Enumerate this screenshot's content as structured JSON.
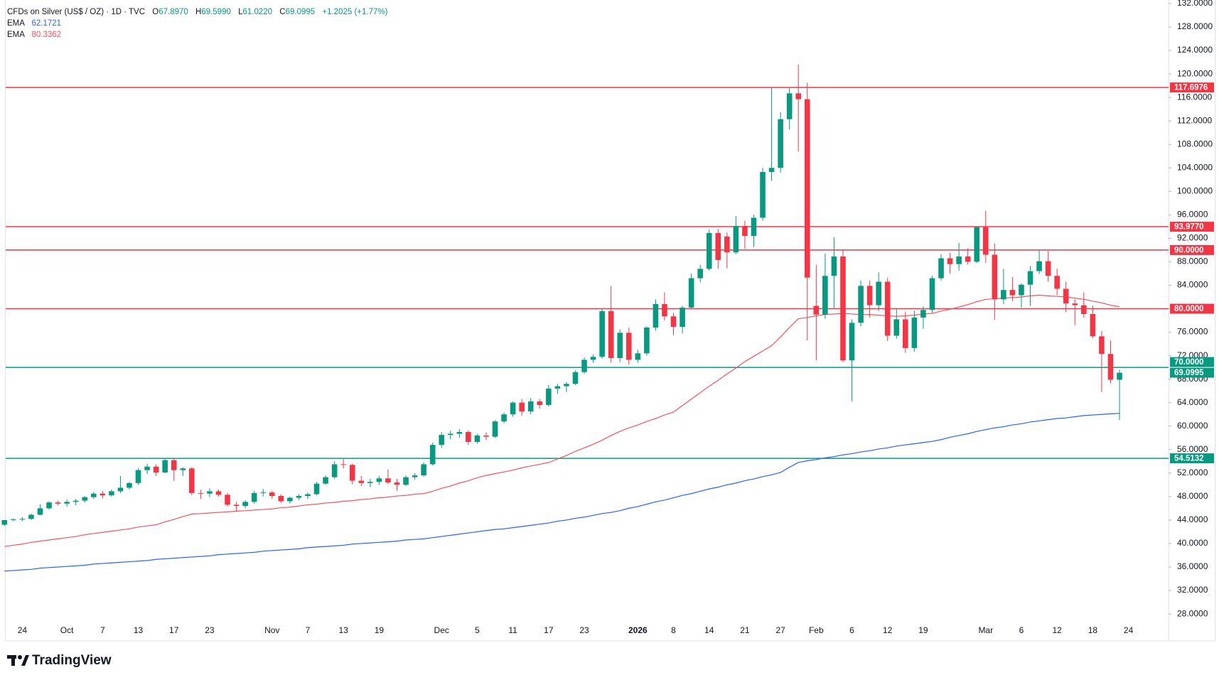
{
  "chart_data": {
    "type": "candlestick",
    "header": {
      "symbol": "CFDs on Silver (US$ / OZ) · 1D · TVC",
      "ohlc": [
        {
          "label": "O",
          "value": "67.8970"
        },
        {
          "label": "H",
          "value": "69.5990"
        },
        {
          "label": "L",
          "value": "61.0220"
        },
        {
          "label": "C",
          "value": "69.0995"
        }
      ],
      "change": "+1.2025 (+1.77%)"
    },
    "branding": "TradingView",
    "up_color": "#089981",
    "down_color": "#f23645",
    "categories": [
      null,
      null,
      "24",
      null,
      null,
      null,
      null,
      "Oct",
      null,
      null,
      null,
      "7",
      null,
      null,
      null,
      "13",
      null,
      null,
      null,
      "17",
      null,
      null,
      null,
      "23",
      null,
      null,
      null,
      null,
      null,
      null,
      "Nov",
      null,
      null,
      null,
      "7",
      null,
      null,
      null,
      "13",
      null,
      null,
      null,
      "19",
      null,
      null,
      null,
      null,
      null,
      null,
      "Dec",
      null,
      null,
      null,
      "5",
      null,
      null,
      null,
      "11",
      null,
      null,
      null,
      "17",
      null,
      null,
      null,
      "23",
      null,
      null,
      null,
      null,
      null,
      "2026",
      null,
      null,
      null,
      "8",
      null,
      null,
      null,
      "14",
      null,
      null,
      null,
      "21",
      null,
      null,
      null,
      "27",
      null,
      null,
      null,
      "Feb",
      null,
      null,
      null,
      "6",
      null,
      null,
      null,
      "12",
      null,
      null,
      null,
      "19",
      null,
      null,
      null,
      null,
      null,
      null,
      "Mar",
      null,
      null,
      null,
      "6",
      null,
      null,
      null,
      "12",
      null,
      null,
      null,
      "18",
      null,
      null,
      null,
      "24"
    ],
    "candles": {
      "open": [
        43.2,
        44,
        44.1,
        44.2,
        44.9,
        46,
        47,
        46.8,
        47.1,
        47.3,
        47.9,
        48.5,
        48.2,
        48.9,
        49.5,
        50.3,
        52.5,
        53.1,
        52.1,
        54.2,
        52.5,
        52.8,
        48.6,
        48.5,
        48.9,
        48.3,
        46.6,
        46.4,
        47.1,
        48.6,
        48.7,
        48.1,
        47.2,
        47.8,
        48.1,
        48.4,
        50.2,
        51.3,
        53.5,
        53.4,
        50.7,
        50.3,
        50.5,
        51.1,
        50.4,
        50,
        51.3,
        51.6,
        53.5,
        56.8,
        58.5,
        58.7,
        59,
        57.3,
        58.4,
        58.2,
        60.8,
        62,
        64,
        62.5,
        64.2,
        63.6,
        66.4,
        66.8,
        67.2,
        69.2,
        71.3,
        71.8,
        79.6,
        71.6,
        75.9,
        71.3,
        72.4,
        76.8,
        80.8,
        78.7,
        76.9,
        80.2,
        85.2,
        86.8,
        92.9,
        92.3,
        89.6,
        94.1,
        92.4,
        95.5,
        103.3,
        104,
        112.3,
        116.7,
        115.7,
        80.5,
        79,
        85.6,
        88.9,
        71.2,
        77.6,
        83.9,
        80.6,
        84.6,
        75.4,
        78.2,
        73.3,
        78.5,
        79.8,
        85.2,
        88.6,
        87.6,
        88.9,
        88,
        93.9,
        89.2,
        81.6,
        83.2,
        82.3,
        84.1,
        86.4,
        88.1,
        85.6,
        83.4,
        80.9,
        80.6,
        79.1,
        75.3,
        72.3,
        67.897,
        null
      ],
      "high": [
        44,
        44.3,
        44.5,
        45.1,
        46.7,
        47.2,
        47.3,
        47.5,
        47.6,
        48.1,
        48.8,
        49,
        49.2,
        51.5,
        50.5,
        52.8,
        53.6,
        53.5,
        54.5,
        54.5,
        53,
        53,
        49.2,
        49.4,
        49.2,
        48.6,
        47.1,
        47.4,
        49,
        49.3,
        49,
        48.4,
        48,
        48.4,
        48.7,
        50.5,
        51.6,
        54,
        54.4,
        53.6,
        51.5,
        51,
        51.5,
        52.6,
        51,
        51.6,
        52,
        53.8,
        57.2,
        59,
        59.2,
        59.5,
        59.3,
        58.7,
        58.9,
        61,
        62.3,
        64.2,
        64.6,
        64.8,
        64.6,
        67,
        67.2,
        67.5,
        69.5,
        71.7,
        72.2,
        80,
        83.9,
        76.5,
        76.8,
        73,
        77,
        81.6,
        82.8,
        79.3,
        80.5,
        86,
        87.5,
        93.5,
        93.6,
        93,
        95.8,
        95,
        96,
        104,
        117.7,
        113.5,
        117.6,
        121.6,
        118.5,
        87.5,
        89.4,
        92.2,
        90,
        78.2,
        84.8,
        84.8,
        86.2,
        85.3,
        80,
        79.5,
        79.7,
        80.4,
        85.6,
        89.3,
        89.5,
        91.2,
        90.3,
        94,
        96.7,
        91.1,
        86.8,
        85.4,
        84.3,
        87.3,
        90,
        89.8,
        86.8,
        84.6,
        81.6,
        82.8,
        80.5,
        76.2,
        74.6,
        69.599,
        null
      ],
      "low": [
        43,
        43.8,
        43.8,
        44,
        44.8,
        45.8,
        46.5,
        46.3,
        46.5,
        47,
        47.6,
        47.7,
        48,
        48.6,
        49.2,
        50,
        51.8,
        51.5,
        52,
        50.7,
        51.5,
        48.2,
        47.6,
        47.9,
        48,
        46.3,
        45.6,
        46,
        46.8,
        48,
        47.6,
        46.9,
        46.8,
        47.4,
        47.6,
        48.2,
        50,
        51,
        52.8,
        50.1,
        49.8,
        49.6,
        50,
        50.1,
        49,
        49.8,
        50.9,
        51.4,
        53.3,
        56.3,
        57.8,
        58,
        56.8,
        57,
        57.6,
        58,
        60.5,
        61.6,
        61.8,
        62,
        63,
        63.3,
        65.5,
        65.8,
        67,
        68.9,
        70.8,
        71.5,
        70.8,
        70.9,
        70.5,
        70.8,
        72,
        76.3,
        78,
        75.5,
        75.8,
        80,
        84.5,
        86.5,
        86.8,
        86.9,
        89.3,
        90.2,
        90.5,
        95,
        101.8,
        103.2,
        110.5,
        106.8,
        74.6,
        71.2,
        78.3,
        80,
        70.9,
        64.2,
        77,
        78.5,
        79.6,
        74.5,
        74.9,
        72.5,
        72.7,
        76.6,
        79.3,
        84.8,
        86,
        86.5,
        87.5,
        87.8,
        87.8,
        78.1,
        80.8,
        81.3,
        80.2,
        80.5,
        85.9,
        84.6,
        82.3,
        79.4,
        77.2,
        78.5,
        75,
        65.8,
        67.3,
        61.022,
        null
      ],
      "close": [
        44,
        44.1,
        44.2,
        44.9,
        46,
        47,
        46.8,
        47.1,
        47.3,
        47.9,
        48.5,
        48.2,
        48.9,
        49.5,
        50.3,
        52.5,
        53.1,
        52.1,
        54.2,
        52.5,
        52.8,
        48.6,
        48.5,
        48.9,
        48.3,
        46.6,
        46.4,
        47.1,
        48.6,
        48.7,
        48.1,
        47.2,
        47.8,
        48.1,
        48.4,
        50.2,
        51.3,
        53.5,
        53.4,
        50.7,
        50.3,
        50.5,
        51.1,
        50.4,
        50,
        51.3,
        51.6,
        53.5,
        56.8,
        58.5,
        58.7,
        59,
        57.3,
        58.4,
        58.2,
        60.8,
        62,
        64,
        62.5,
        64.2,
        63.6,
        66.4,
        66.8,
        67.2,
        69.2,
        71.3,
        71.8,
        79.6,
        71.6,
        75.9,
        71.3,
        72.4,
        76.8,
        80.8,
        78.7,
        76.9,
        80.2,
        85.2,
        86.8,
        92.9,
        88.3,
        89.6,
        94.1,
        92.4,
        95.5,
        103.3,
        104,
        112.3,
        116.7,
        115.7,
        85.3,
        79,
        85.6,
        88.9,
        71.2,
        77.6,
        83.9,
        80.6,
        84.6,
        75.4,
        78.2,
        73.3,
        78.5,
        79.8,
        85.2,
        88.6,
        87.6,
        88.9,
        88,
        93.9,
        89.2,
        81.6,
        83.2,
        82.3,
        84.1,
        86.4,
        88.1,
        85.6,
        83.4,
        80.9,
        80.6,
        79.1,
        75.3,
        72.3,
        67.9,
        69.0995,
        null
      ]
    },
    "series": [
      {
        "name": "EMA",
        "color": "#2962ff",
        "legend_value": "62.1721",
        "values": [
          35.3,
          35.4,
          35.5,
          35.6,
          35.8,
          35.9,
          36.0,
          36.1,
          36.2,
          36.3,
          36.5,
          36.6,
          36.7,
          36.8,
          36.9,
          37.0,
          37.1,
          37.3,
          37.4,
          37.5,
          37.6,
          37.7,
          37.8,
          37.9,
          38.1,
          38.2,
          38.3,
          38.4,
          38.5,
          38.7,
          38.8,
          38.9,
          39.0,
          39.1,
          39.3,
          39.4,
          39.5,
          39.6,
          39.7,
          39.9,
          40.0,
          40.1,
          40.2,
          40.3,
          40.4,
          40.6,
          40.7,
          40.8,
          41.0,
          41.2,
          41.4,
          41.6,
          41.8,
          42.0,
          42.2,
          42.4,
          42.5,
          42.7,
          42.9,
          43.1,
          43.3,
          43.5,
          43.8,
          44.0,
          44.3,
          44.5,
          44.8,
          45.1,
          45.3,
          45.6,
          46.0,
          46.3,
          46.7,
          47.1,
          47.4,
          47.8,
          48.2,
          48.5,
          48.9,
          49.3,
          49.6,
          50.0,
          50.3,
          50.7,
          51.0,
          51.4,
          51.7,
          52.1,
          53.0,
          53.8,
          54.1,
          54.3,
          54.6,
          54.8,
          55.1,
          55.3,
          55.6,
          55.8,
          56.1,
          56.3,
          56.6,
          56.8,
          57.0,
          57.2,
          57.4,
          57.7,
          58.1,
          58.4,
          58.7,
          59.1,
          59.4,
          59.7,
          59.9,
          60.2,
          60.4,
          60.7,
          60.9,
          61.1,
          61.3,
          61.4,
          61.6,
          61.8,
          61.9,
          62.0,
          62.1,
          62.1721,
          null
        ]
      },
      {
        "name": "EMA",
        "color": "#f7525f",
        "legend_value": "80.3362",
        "values": [
          39.5,
          39.7,
          39.9,
          40.2,
          40.4,
          40.6,
          40.8,
          41,
          41.2,
          41.5,
          41.7,
          41.9,
          42.1,
          42.3,
          42.5,
          42.8,
          43,
          43.2,
          43.7,
          44.1,
          44.6,
          45.0,
          45.1,
          45.2,
          45.3,
          45.4,
          45.5,
          45.6,
          45.7,
          45.8,
          45.9,
          46.1,
          46.2,
          46.4,
          46.6,
          46.7,
          46.9,
          47.0,
          47.2,
          47.3,
          47.5,
          47.6,
          47.8,
          47.9,
          48.1,
          48.2,
          48.4,
          48.5,
          48.9,
          49.4,
          49.8,
          50.3,
          50.7,
          51.2,
          51.6,
          51.9,
          52.2,
          52.5,
          52.9,
          53.2,
          53.5,
          53.8,
          54.4,
          55.0,
          55.7,
          56.3,
          56.9,
          57.6,
          58.4,
          59.1,
          59.7,
          60.2,
          60.8,
          61.3,
          61.9,
          62.4,
          63.5,
          64.6,
          65.7,
          66.8,
          67.8,
          68.9,
          69.9,
          71.0,
          71.9,
          72.8,
          73.7,
          75.2,
          76.8,
          78.3,
          78.5,
          78.8,
          79.0,
          79.1,
          79.2,
          79.1,
          79.0,
          79.0,
          78.9,
          78.8,
          78.7,
          78.8,
          78.9,
          79.1,
          79.2,
          79.6,
          79.9,
          80.3,
          80.7,
          81.2,
          81.6,
          81.7,
          81.8,
          81.9,
          82.0,
          82.2,
          82.3,
          82.2,
          82.1,
          82.0,
          81.8,
          81.6,
          81.3,
          81.0,
          80.6,
          80.3362,
          null
        ]
      }
    ],
    "levels": [
      {
        "value": 117.6976,
        "label": "117.6976",
        "color": "#f23645"
      },
      {
        "value": 93.977,
        "label": "93.9770",
        "color": "#f23645"
      },
      {
        "value": 90,
        "label": "90.0000",
        "color": "#f23645"
      },
      {
        "value": 80,
        "label": "80.0000",
        "color": "#f23645"
      },
      {
        "value": 70,
        "label": "70.0000",
        "color": "#089981"
      },
      {
        "value": 54.5132,
        "label": "54.5132",
        "color": "#089981"
      }
    ],
    "ylim": [
      26.8,
      132.6
    ],
    "yticks": [
      {
        "value": 28,
        "label": "28.0000"
      },
      {
        "value": 32,
        "label": "32.0000"
      },
      {
        "value": 36,
        "label": "36.0000"
      },
      {
        "value": 40,
        "label": "40.0000"
      },
      {
        "value": 44,
        "label": "44.0000"
      },
      {
        "value": 48,
        "label": "48.0000"
      },
      {
        "value": 52,
        "label": "52.0000"
      },
      {
        "value": 56,
        "label": "56.0000"
      },
      {
        "value": 60,
        "label": "60.0000"
      },
      {
        "value": 64,
        "label": "64.0000"
      },
      {
        "value": 68,
        "label": "68.0000"
      },
      {
        "value": 72,
        "label": "72.0000"
      },
      {
        "value": 76,
        "label": "76.0000"
      },
      {
        "value": 80,
        "label": "80.0000"
      },
      {
        "value": 84,
        "label": "84.0000"
      },
      {
        "value": 88,
        "label": "88.0000"
      },
      {
        "value": 92,
        "label": "92.0000"
      },
      {
        "value": 96,
        "label": "96.0000"
      },
      {
        "value": 100,
        "label": "100.0000"
      },
      {
        "value": 104,
        "label": "104.0000"
      },
      {
        "value": 108,
        "label": "108.0000"
      },
      {
        "value": 112,
        "label": "112.0000"
      },
      {
        "value": 116,
        "label": "116.0000"
      },
      {
        "value": 120,
        "label": "120.0000"
      },
      {
        "value": 124,
        "label": "124.0000"
      },
      {
        "value": 128,
        "label": "128.0000"
      },
      {
        "value": 132,
        "label": "132.0000"
      }
    ],
    "grid": false
  }
}
